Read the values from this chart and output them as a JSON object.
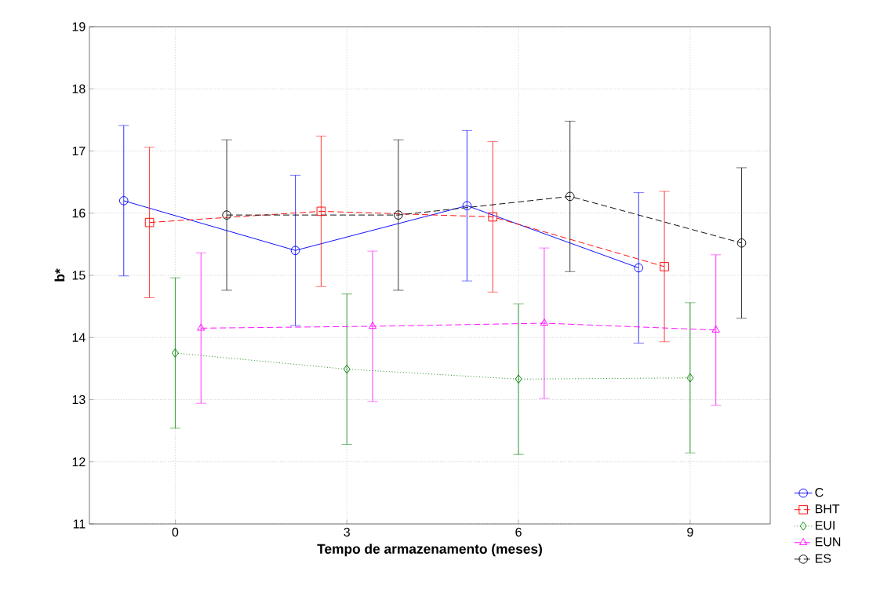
{
  "chart_data": {
    "type": "line",
    "xlabel": "Tempo de armazenamento (meses)",
    "ylabel": "b*",
    "xlim": [
      -1.5,
      10.4
    ],
    "xticks": [
      0,
      3,
      6,
      9
    ],
    "ylim": [
      11,
      19
    ],
    "yticks": [
      11,
      12,
      13,
      14,
      15,
      16,
      17,
      18,
      19
    ],
    "grid": true,
    "legend": "bottom right",
    "series": [
      {
        "name": "C",
        "color": "#0000ff",
        "marker": "circle",
        "line_style": "solid",
        "x": [
          -0.9,
          2.1,
          5.1,
          8.1
        ],
        "values": [
          16.2,
          15.4,
          16.12,
          15.12
        ],
        "errors": [
          1.21,
          1.21,
          1.21,
          1.21
        ]
      },
      {
        "name": "BHT",
        "color": "#ff0000",
        "marker": "square",
        "line_style": "dashed",
        "x": [
          -0.45,
          2.55,
          5.55,
          8.55
        ],
        "values": [
          15.85,
          16.03,
          15.94,
          15.14
        ],
        "errors": [
          1.21,
          1.21,
          1.21,
          1.21
        ]
      },
      {
        "name": "EUI",
        "color": "#008000",
        "marker": "diamond",
        "line_style": "dotted",
        "x": [
          0,
          3,
          6,
          9
        ],
        "values": [
          13.75,
          13.49,
          13.33,
          13.35
        ],
        "errors": [
          1.21,
          1.21,
          1.21,
          1.21
        ]
      },
      {
        "name": "EUN",
        "color": "#ff00ff",
        "marker": "triangle",
        "line_style": "dashed",
        "x": [
          0.45,
          3.45,
          6.45,
          9.45
        ],
        "values": [
          14.15,
          14.18,
          14.23,
          14.12
        ],
        "errors": [
          1.21,
          1.21,
          1.21,
          1.21
        ]
      },
      {
        "name": "ES",
        "color": "#000000",
        "marker": "circle",
        "line_style": "dashed",
        "x": [
          0.9,
          3.9,
          6.9,
          9.9
        ],
        "values": [
          15.97,
          15.97,
          16.27,
          15.52
        ],
        "errors": [
          1.21,
          1.21,
          1.21,
          1.21
        ]
      }
    ]
  }
}
